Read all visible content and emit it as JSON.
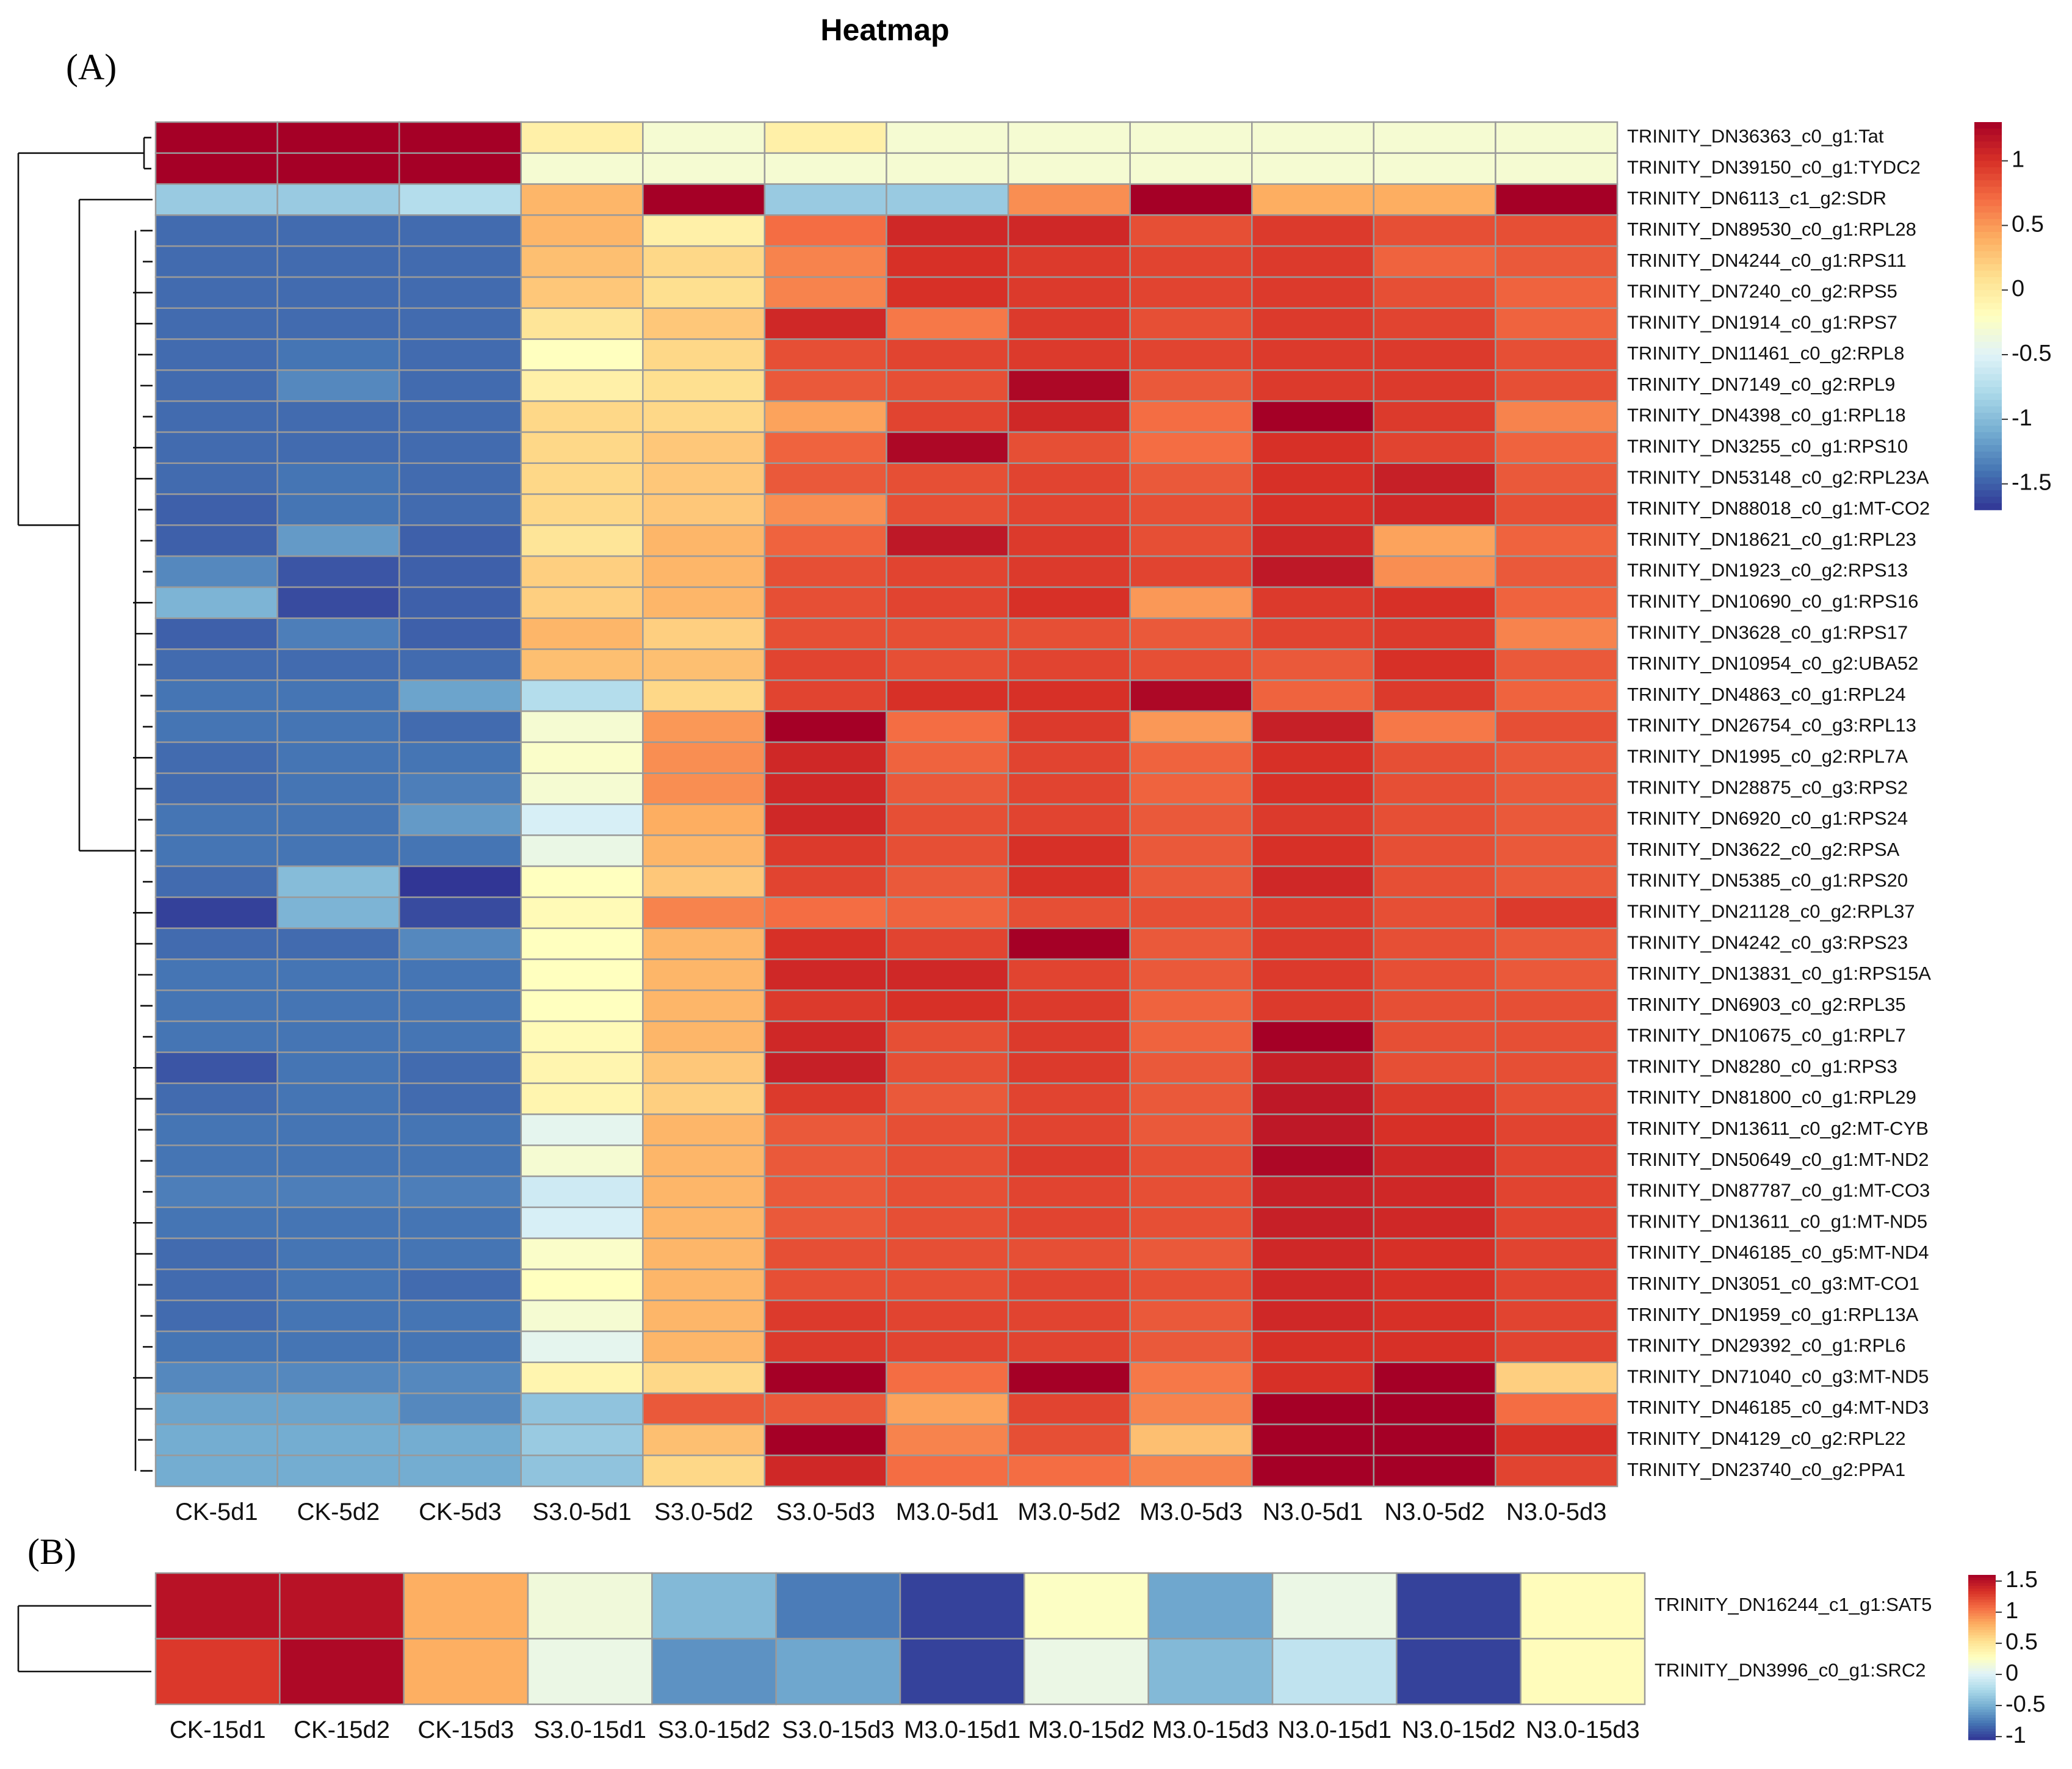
{
  "title": "Heatmap",
  "chart_data": [
    {
      "type": "heatmap",
      "panel_label": "(A)",
      "columns": [
        "CK-5d1",
        "CK-5d2",
        "CK-5d3",
        "S3.0-5d1",
        "S3.0-5d2",
        "S3.0-5d3",
        "M3.0-5d1",
        "M3.0-5d2",
        "M3.0-5d3",
        "N3.0-5d1",
        "N3.0-5d2",
        "N3.0-5d3"
      ],
      "rows": [
        "TRINITY_DN36363_c0_g1:Tat",
        "TRINITY_DN39150_c0_g1:TYDC2",
        "TRINITY_DN6113_c1_g2:SDR",
        "TRINITY_DN89530_c0_g1:RPL28",
        "TRINITY_DN4244_c0_g1:RPS11",
        "TRINITY_DN7240_c0_g2:RPS5",
        "TRINITY_DN1914_c0_g1:RPS7",
        "TRINITY_DN11461_c0_g2:RPL8",
        "TRINITY_DN7149_c0_g2:RPL9",
        "TRINITY_DN4398_c0_g1:RPL18",
        "TRINITY_DN3255_c0_g1:RPS10",
        "TRINITY_DN53148_c0_g2:RPL23A",
        "TRINITY_DN88018_c0_g1:MT-CO2",
        "TRINITY_DN18621_c0_g1:RPL23",
        "TRINITY_DN1923_c0_g2:RPS13",
        "TRINITY_DN10690_c0_g1:RPS16",
        "TRINITY_DN3628_c0_g1:RPS17",
        "TRINITY_DN10954_c0_g2:UBA52",
        "TRINITY_DN4863_c0_g1:RPL24",
        "TRINITY_DN26754_c0_g3:RPL13",
        "TRINITY_DN1995_c0_g2:RPL7A",
        "TRINITY_DN28875_c0_g3:RPS2",
        "TRINITY_DN6920_c0_g1:RPS24",
        "TRINITY_DN3622_c0_g2:RPSA",
        "TRINITY_DN5385_c0_g1:RPS20",
        "TRINITY_DN21128_c0_g2:RPL37",
        "TRINITY_DN4242_c0_g3:RPS23",
        "TRINITY_DN13831_c0_g1:RPS15A",
        "TRINITY_DN6903_c0_g2:RPL35",
        "TRINITY_DN10675_c0_g1:RPL7",
        "TRINITY_DN8280_c0_g1:RPS3",
        "TRINITY_DN81800_c0_g1:RPL29",
        "TRINITY_DN13611_c0_g2:MT-CYB",
        "TRINITY_DN50649_c0_g1:MT-ND2",
        "TRINITY_DN87787_c0_g1:MT-CO3",
        "TRINITY_DN13611_c0_g1:MT-ND5",
        "TRINITY_DN46185_c0_g5:MT-ND4",
        "TRINITY_DN3051_c0_g3:MT-CO1",
        "TRINITY_DN1959_c0_g1:RPL13A",
        "TRINITY_DN29392_c0_g1:RPL6",
        "TRINITY_DN71040_c0_g3:MT-ND5",
        "TRINITY_DN46185_c0_g4:MT-ND3",
        "TRINITY_DN4129_c0_g2:RPL22",
        "TRINITY_DN23740_c0_g2:PPA1"
      ],
      "values": [
        [
          1.3,
          1.3,
          1.3,
          -0.05,
          -0.3,
          -0.05,
          -0.3,
          -0.3,
          -0.3,
          -0.3,
          -0.3,
          -0.3
        ],
        [
          1.3,
          1.3,
          1.3,
          -0.3,
          -0.3,
          -0.3,
          -0.3,
          -0.3,
          -0.3,
          -0.3,
          -0.3,
          -0.3
        ],
        [
          -0.9,
          -0.9,
          -0.75,
          0.35,
          1.3,
          -0.9,
          -0.9,
          0.55,
          1.3,
          0.4,
          0.4,
          1.3
        ],
        [
          -1.45,
          -1.45,
          -1.45,
          0.35,
          -0.05,
          0.7,
          1.05,
          1.05,
          0.85,
          0.95,
          0.85,
          0.85
        ],
        [
          -1.45,
          -1.45,
          -1.45,
          0.3,
          0.15,
          0.6,
          1.0,
          0.95,
          0.9,
          0.95,
          0.75,
          0.8
        ],
        [
          -1.45,
          -1.45,
          -1.45,
          0.25,
          0.1,
          0.6,
          1.0,
          0.95,
          0.9,
          0.95,
          0.85,
          0.75
        ],
        [
          -1.45,
          -1.45,
          -1.45,
          0.05,
          0.25,
          1.05,
          0.65,
          0.95,
          0.85,
          0.95,
          0.9,
          0.75
        ],
        [
          -1.45,
          -1.4,
          -1.45,
          -0.2,
          0.15,
          0.85,
          0.9,
          0.95,
          0.9,
          0.95,
          0.95,
          0.85
        ],
        [
          -1.45,
          -1.3,
          -1.45,
          -0.05,
          0.1,
          0.8,
          0.85,
          1.25,
          0.8,
          0.95,
          0.95,
          0.85
        ],
        [
          -1.45,
          -1.45,
          -1.45,
          0.15,
          0.15,
          0.45,
          0.9,
          1.05,
          0.7,
          1.35,
          0.95,
          0.6
        ],
        [
          -1.45,
          -1.45,
          -1.45,
          0.15,
          0.25,
          0.75,
          1.25,
          0.85,
          0.7,
          1.0,
          0.9,
          0.75
        ],
        [
          -1.45,
          -1.4,
          -1.45,
          0.15,
          0.25,
          0.8,
          0.85,
          0.9,
          0.8,
          1.0,
          1.1,
          0.8
        ],
        [
          -1.5,
          -1.4,
          -1.45,
          0.15,
          0.25,
          0.55,
          0.85,
          0.9,
          0.85,
          1.0,
          1.05,
          0.85
        ],
        [
          -1.5,
          -1.2,
          -1.5,
          0.05,
          0.35,
          0.75,
          1.15,
          0.95,
          0.85,
          1.05,
          0.45,
          0.75
        ],
        [
          -1.3,
          -1.55,
          -1.5,
          0.2,
          0.35,
          0.85,
          0.9,
          0.95,
          0.9,
          1.15,
          0.55,
          0.8
        ],
        [
          -1.05,
          -1.6,
          -1.5,
          0.2,
          0.35,
          0.85,
          0.9,
          1.0,
          0.5,
          0.95,
          1.0,
          0.75
        ],
        [
          -1.5,
          -1.35,
          -1.5,
          0.35,
          0.2,
          0.85,
          0.85,
          0.85,
          0.8,
          0.9,
          0.95,
          0.6
        ],
        [
          -1.45,
          -1.45,
          -1.45,
          0.3,
          0.3,
          0.9,
          0.85,
          0.9,
          0.85,
          0.8,
          1.0,
          0.8
        ],
        [
          -1.4,
          -1.4,
          -1.15,
          -0.75,
          0.15,
          0.9,
          1.0,
          1.0,
          1.25,
          0.75,
          0.95,
          0.75
        ],
        [
          -1.4,
          -1.4,
          -1.45,
          -0.3,
          0.5,
          1.3,
          0.7,
          0.95,
          0.5,
          1.1,
          0.65,
          0.85
        ],
        [
          -1.45,
          -1.4,
          -1.4,
          -0.25,
          0.55,
          1.05,
          0.75,
          0.9,
          0.75,
          1.0,
          0.85,
          0.8
        ],
        [
          -1.45,
          -1.4,
          -1.35,
          -0.3,
          0.55,
          1.05,
          0.8,
          0.9,
          0.75,
          1.0,
          0.85,
          0.8
        ],
        [
          -1.4,
          -1.4,
          -1.2,
          -0.55,
          0.4,
          1.05,
          0.85,
          0.9,
          0.8,
          0.95,
          0.85,
          0.8
        ],
        [
          -1.4,
          -1.4,
          -1.4,
          -0.4,
          0.35,
          0.95,
          0.85,
          1.0,
          0.8,
          1.0,
          0.85,
          0.8
        ],
        [
          -1.45,
          -1.0,
          -1.75,
          -0.2,
          0.25,
          0.9,
          0.8,
          1.0,
          0.8,
          1.05,
          0.85,
          0.8
        ],
        [
          -1.65,
          -1.05,
          -1.6,
          -0.15,
          0.6,
          0.7,
          0.75,
          0.85,
          0.85,
          0.95,
          0.85,
          0.95
        ],
        [
          -1.45,
          -1.45,
          -1.3,
          -0.2,
          0.35,
          1.0,
          0.9,
          1.35,
          0.8,
          0.95,
          0.85,
          0.8
        ],
        [
          -1.4,
          -1.4,
          -1.4,
          -0.2,
          0.35,
          1.05,
          1.05,
          0.9,
          0.8,
          0.95,
          0.85,
          0.8
        ],
        [
          -1.4,
          -1.4,
          -1.4,
          -0.2,
          0.35,
          0.95,
          1.0,
          0.95,
          0.75,
          0.95,
          0.85,
          0.85
        ],
        [
          -1.4,
          -1.4,
          -1.4,
          -0.15,
          0.35,
          1.05,
          0.85,
          0.95,
          0.75,
          1.3,
          0.85,
          0.85
        ],
        [
          -1.55,
          -1.4,
          -1.45,
          -0.1,
          0.25,
          1.1,
          0.85,
          0.95,
          0.8,
          1.1,
          0.85,
          0.85
        ],
        [
          -1.45,
          -1.4,
          -1.45,
          -0.1,
          0.2,
          0.95,
          0.8,
          0.9,
          0.8,
          1.15,
          0.95,
          0.85
        ],
        [
          -1.4,
          -1.4,
          -1.4,
          -0.45,
          0.35,
          0.8,
          0.85,
          0.9,
          0.8,
          1.15,
          1.0,
          0.9
        ],
        [
          -1.4,
          -1.4,
          -1.4,
          -0.3,
          0.35,
          0.8,
          0.85,
          0.95,
          0.85,
          1.25,
          1.05,
          0.9
        ],
        [
          -1.35,
          -1.35,
          -1.35,
          -0.6,
          0.35,
          0.8,
          0.85,
          0.9,
          0.85,
          1.1,
          1.05,
          0.9
        ],
        [
          -1.4,
          -1.4,
          -1.4,
          -0.55,
          0.35,
          0.8,
          0.85,
          0.9,
          0.85,
          1.1,
          1.05,
          0.9
        ],
        [
          -1.45,
          -1.4,
          -1.4,
          -0.25,
          0.35,
          0.85,
          0.85,
          0.85,
          0.8,
          1.05,
          1.0,
          0.9
        ],
        [
          -1.45,
          -1.4,
          -1.45,
          -0.2,
          0.35,
          0.85,
          0.85,
          0.9,
          0.85,
          1.05,
          1.0,
          0.9
        ],
        [
          -1.45,
          -1.4,
          -1.4,
          -0.3,
          0.35,
          0.95,
          0.9,
          0.9,
          0.8,
          1.05,
          1.0,
          0.9
        ],
        [
          -1.4,
          -1.4,
          -1.4,
          -0.45,
          0.35,
          0.95,
          0.9,
          0.9,
          0.8,
          1.0,
          1.0,
          0.9
        ],
        [
          -1.3,
          -1.3,
          -1.3,
          -0.1,
          0.15,
          1.35,
          0.7,
          1.35,
          0.65,
          1.0,
          1.35,
          0.2
        ],
        [
          -1.15,
          -1.15,
          -1.3,
          -0.95,
          0.8,
          0.8,
          0.45,
          0.9,
          0.6,
          1.35,
          1.3,
          0.7
        ],
        [
          -1.1,
          -1.1,
          -1.1,
          -0.9,
          0.3,
          1.35,
          0.6,
          0.85,
          0.3,
          1.35,
          1.35,
          1.0
        ],
        [
          -1.1,
          -1.1,
          -1.1,
          -0.95,
          0.15,
          1.05,
          0.7,
          0.7,
          0.6,
          1.35,
          1.35,
          0.9
        ]
      ],
      "legend": {
        "ticks": [
          1,
          0.5,
          0,
          -0.5,
          -1,
          -1.5
        ],
        "range": [
          -1.7,
          1.3
        ]
      }
    },
    {
      "type": "heatmap",
      "panel_label": "(B)",
      "columns": [
        "CK-15d1",
        "CK-15d2",
        "CK-15d3",
        "S3.0-15d1",
        "S3.0-15d2",
        "S3.0-15d3",
        "M3.0-15d1",
        "M3.0-15d2",
        "M3.0-15d3",
        "N3.0-15d1",
        "N3.0-15d2",
        "N3.0-15d3"
      ],
      "rows": [
        "TRINITY_DN16244_c1_g1:SAT5",
        "TRINITY_DN3996_c0_g1:SRC2"
      ],
      "values": [
        [
          1.5,
          1.5,
          0.8,
          0.15,
          -0.45,
          -0.75,
          -1.0,
          0.25,
          -0.55,
          0.1,
          -1.0,
          0.3
        ],
        [
          1.3,
          1.55,
          0.8,
          0.1,
          -0.65,
          -0.55,
          -1.0,
          0.1,
          -0.45,
          -0.15,
          -1.0,
          0.3
        ]
      ],
      "legend": {
        "ticks": [
          1.5,
          1,
          0.5,
          0,
          -0.5,
          -1
        ],
        "range": [
          -1.05,
          1.6
        ]
      }
    }
  ]
}
